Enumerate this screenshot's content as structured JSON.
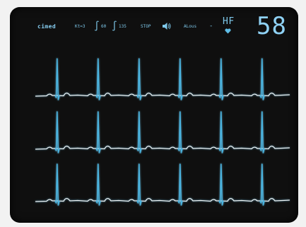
{
  "monitor": {
    "app_label": "cimed",
    "sensitivity": "Kt=3",
    "integral_1": "∫",
    "lower_limit": "60",
    "integral_2": "∫",
    "upper_limit": "135",
    "stop_label": "STOP",
    "speaker_icon": "speaker-icon",
    "alarm_label": "ALous",
    "separator": "-",
    "hr_label": "HF",
    "heart_icon": "heart-icon",
    "heart_rate": "58"
  },
  "colors": {
    "screen": "#0f0f0f",
    "trace_white": "#eef4f6",
    "trace_cyan": "#4ab4e0",
    "text": "#7ec8ea"
  },
  "ecg": {
    "channels": 3,
    "beats_per_channel": 6
  }
}
